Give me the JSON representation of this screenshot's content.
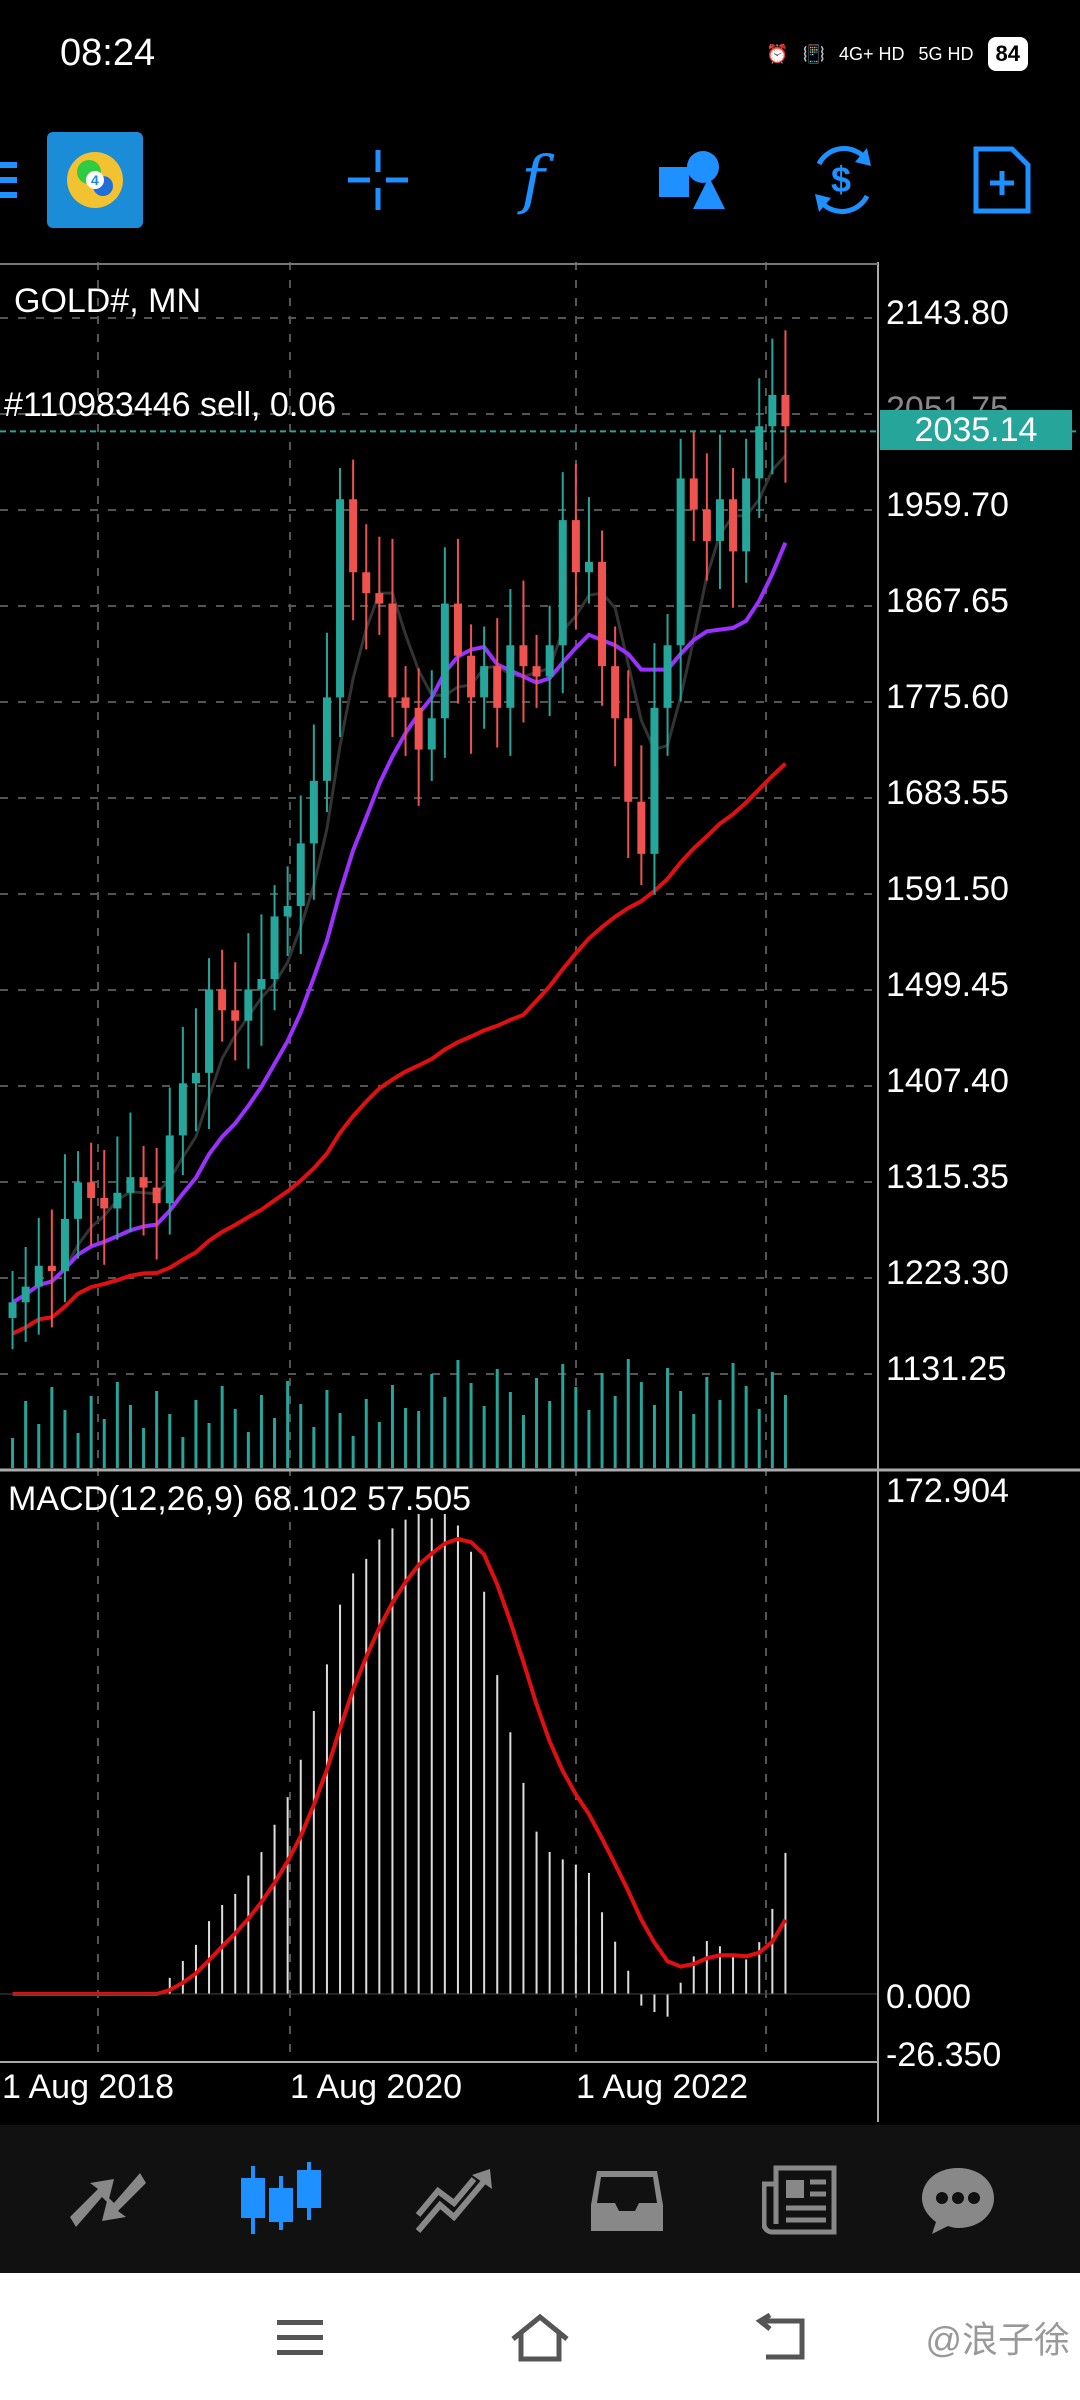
{
  "status": {
    "time": "08:24",
    "network1": "4G+ HD",
    "network2": "5G HD",
    "battery": "84"
  },
  "toolbar": {
    "menu_icon": "hamburger-menu-icon",
    "app_icon": "metatrader-logo",
    "tools": [
      {
        "name": "crosshair-icon"
      },
      {
        "name": "indicators-icon",
        "glyph": "f"
      },
      {
        "name": "objects-icon"
      },
      {
        "name": "trade-icon"
      },
      {
        "name": "new-order-icon"
      }
    ]
  },
  "chart": {
    "symbol_label": "GOLD#, MN",
    "order_label": "#110983446 sell, 0.06",
    "current_price": "2035.14",
    "price_ticks": [
      "2143.80",
      "2051.75",
      "1959.70",
      "1867.65",
      "1775.60",
      "1683.55",
      "1591.50",
      "1499.45",
      "1407.40",
      "1315.35",
      "1223.30",
      "1131.25"
    ],
    "macd_label": "MACD(12,26,9) 68.102 57.505",
    "macd_ticks": [
      "172.904",
      "0.000",
      "-26.350"
    ],
    "date_ticks": [
      "1 Aug 2018",
      "1 Aug 2020",
      "1 Aug 2022"
    ],
    "colors": {
      "up": "#26a69a",
      "down": "#ef5350",
      "ma_fast": "#222222",
      "ma_mid": "#9b30ff",
      "ma_slow": "#e01010",
      "price_line": "#26a69a"
    }
  },
  "bottom_nav": [
    {
      "name": "quotes-icon",
      "active": false
    },
    {
      "name": "chart-icon",
      "active": true
    },
    {
      "name": "trade-icon",
      "active": false
    },
    {
      "name": "history-icon",
      "active": false
    },
    {
      "name": "news-icon",
      "active": false
    },
    {
      "name": "messages-icon",
      "active": false
    }
  ],
  "watermark": "@浪子徐"
}
